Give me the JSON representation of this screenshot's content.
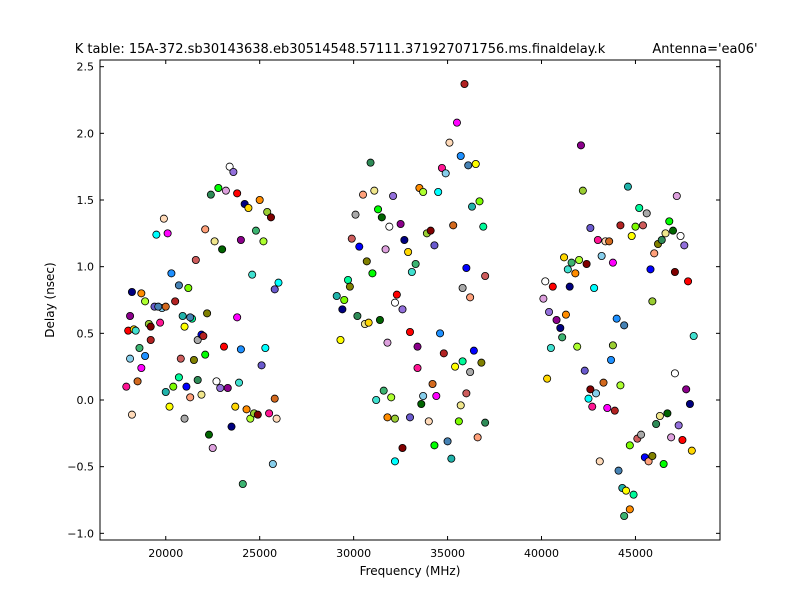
{
  "chart_data": {
    "type": "scatter",
    "title": "K table: 15A-372.sb30143638.eb30514548.57111.371927071756.ms.finaldelay.k",
    "antenna_label": "Antenna='ea06'",
    "xlabel": "Frequency (MHz)",
    "ylabel": "Delay (nsec)",
    "xlim": [
      16500,
      49500
    ],
    "ylim": [
      -1.05,
      2.55
    ],
    "xticks": [
      20000,
      25000,
      30000,
      35000,
      40000,
      45000
    ],
    "xtick_labels": [
      "20000",
      "25000",
      "30000",
      "35000",
      "40000",
      "45000"
    ],
    "yticks": [
      -1.0,
      -0.5,
      0.0,
      0.5,
      1.0,
      1.5,
      2.0,
      2.5
    ],
    "ytick_labels": [
      "−1.0",
      "−0.5",
      "0.0",
      "0.5",
      "1.0",
      "1.5",
      "2.0",
      "2.5"
    ],
    "grid": false,
    "marker": "circle",
    "marker_edge_color": "#000000",
    "palette": [
      "#ff0000",
      "#00ff00",
      "#0000ff",
      "#ffff00",
      "#ff00ff",
      "#00ffff",
      "#ff8c00",
      "#8b008b",
      "#006400",
      "#ffa07a",
      "#7cfc00",
      "#1e90ff",
      "#ff1493",
      "#adff2f",
      "#000080",
      "#dda0dd",
      "#808000",
      "#00fa9a",
      "#b22222",
      "#87ceeb",
      "#9acd32",
      "#ffd700",
      "#ffffff",
      "#2e8b57",
      "#cd5c5c",
      "#4682b4",
      "#ffdab9",
      "#800000",
      "#40e0d0",
      "#9370db",
      "#f0e68c",
      "#a9a9a9",
      "#20b2aa",
      "#d2691e",
      "#6a5acd",
      "#3cb371"
    ],
    "points": [
      [
        18000,
        0.52
      ],
      [
        18100,
        0.63
      ],
      [
        18200,
        0.81
      ],
      [
        18300,
        0.53
      ],
      [
        18400,
        0.52
      ],
      [
        18600,
        0.39
      ],
      [
        18700,
        0.8
      ],
      [
        18900,
        0.74
      ],
      [
        19100,
        0.57
      ],
      [
        19200,
        0.55
      ],
      [
        19400,
        0.7
      ],
      [
        19500,
        1.24
      ],
      [
        19700,
        0.58
      ],
      [
        19800,
        0.69
      ],
      [
        19900,
        1.36
      ],
      [
        20000,
        0.7
      ],
      [
        20100,
        1.25
      ],
      [
        20300,
        0.95
      ],
      [
        20500,
        0.74
      ],
      [
        20700,
        0.86
      ],
      [
        20900,
        0.63
      ],
      [
        21000,
        0.55
      ],
      [
        21200,
        0.84
      ],
      [
        21400,
        0.61
      ],
      [
        21600,
        1.05
      ],
      [
        21700,
        0.45
      ],
      [
        21900,
        0.49
      ],
      [
        22100,
        1.28
      ],
      [
        22200,
        0.65
      ],
      [
        22400,
        1.54
      ],
      [
        22600,
        1.19
      ],
      [
        22800,
        1.59
      ],
      [
        23000,
        1.13
      ],
      [
        23200,
        1.57
      ],
      [
        23400,
        1.75
      ],
      [
        23600,
        1.71
      ],
      [
        23800,
        1.55
      ],
      [
        24000,
        1.2
      ],
      [
        24200,
        1.47
      ],
      [
        24400,
        1.44
      ],
      [
        24600,
        0.94
      ],
      [
        24800,
        1.27
      ],
      [
        25000,
        1.5
      ],
      [
        25200,
        1.19
      ],
      [
        25400,
        1.41
      ],
      [
        25600,
        1.37
      ],
      [
        25800,
        0.83
      ],
      [
        26000,
        0.88
      ],
      [
        17900,
        0.1
      ],
      [
        18100,
        0.31
      ],
      [
        18200,
        -0.11
      ],
      [
        18500,
        0.14
      ],
      [
        18700,
        0.24
      ],
      [
        18900,
        0.33
      ],
      [
        19200,
        0.45
      ],
      [
        19600,
        0.7
      ],
      [
        20000,
        0.06
      ],
      [
        20200,
        -0.05
      ],
      [
        20400,
        0.1
      ],
      [
        20700,
        0.17
      ],
      [
        20800,
        0.31
      ],
      [
        21000,
        -0.14
      ],
      [
        21100,
        0.1
      ],
      [
        21300,
        0.02
      ],
      [
        21500,
        0.3
      ],
      [
        21700,
        0.15
      ],
      [
        21900,
        0.04
      ],
      [
        22100,
        0.34
      ],
      [
        22300,
        -0.26
      ],
      [
        22500,
        -0.36
      ],
      [
        22700,
        0.14
      ],
      [
        22900,
        0.09
      ],
      [
        23100,
        0.4
      ],
      [
        23300,
        0.09
      ],
      [
        23500,
        -0.2
      ],
      [
        23700,
        -0.05
      ],
      [
        23900,
        0.13
      ],
      [
        24100,
        -0.63
      ],
      [
        24300,
        -0.07
      ],
      [
        24500,
        -0.14
      ],
      [
        24700,
        -0.1
      ],
      [
        24900,
        -0.11
      ],
      [
        25100,
        0.26
      ],
      [
        25300,
        0.39
      ],
      [
        25500,
        -0.1
      ],
      [
        25700,
        -0.48
      ],
      [
        25900,
        -0.14
      ],
      [
        25800,
        0.01
      ],
      [
        23800,
        0.62
      ],
      [
        24000,
        0.38
      ],
      [
        22000,
        0.48
      ],
      [
        21300,
        0.62
      ],
      [
        29100,
        0.78
      ],
      [
        29300,
        0.45
      ],
      [
        29500,
        0.75
      ],
      [
        29700,
        0.9
      ],
      [
        29900,
        1.21
      ],
      [
        30100,
        1.39
      ],
      [
        30300,
        1.15
      ],
      [
        30500,
        1.54
      ],
      [
        30700,
        1.04
      ],
      [
        30900,
        1.78
      ],
      [
        31100,
        1.57
      ],
      [
        31300,
        1.43
      ],
      [
        31500,
        1.37
      ],
      [
        31700,
        1.13
      ],
      [
        31900,
        1.3
      ],
      [
        32100,
        1.53
      ],
      [
        32300,
        0.79
      ],
      [
        32500,
        1.32
      ],
      [
        32700,
        1.2
      ],
      [
        32900,
        1.11
      ],
      [
        33100,
        0.96
      ],
      [
        33300,
        1.02
      ],
      [
        33500,
        1.59
      ],
      [
        33700,
        1.56
      ],
      [
        33900,
        1.25
      ],
      [
        34100,
        1.27
      ],
      [
        34300,
        1.16
      ],
      [
        34500,
        1.56
      ],
      [
        34700,
        1.74
      ],
      [
        34900,
        1.7
      ],
      [
        35100,
        1.93
      ],
      [
        35300,
        1.31
      ],
      [
        35500,
        2.08
      ],
      [
        35700,
        1.83
      ],
      [
        35900,
        2.37
      ],
      [
        36100,
        1.76
      ],
      [
        36300,
        1.45
      ],
      [
        36500,
        1.77
      ],
      [
        36700,
        1.49
      ],
      [
        36900,
        1.3
      ],
      [
        37000,
        0.93
      ],
      [
        35800,
        0.84
      ],
      [
        36000,
        0.99
      ],
      [
        36200,
        0.77
      ],
      [
        29800,
        0.85
      ],
      [
        30200,
        0.63
      ],
      [
        30600,
        0.57
      ],
      [
        31000,
        0.95
      ],
      [
        31400,
        0.6
      ],
      [
        31800,
        0.43
      ],
      [
        32200,
        0.73
      ],
      [
        32600,
        0.68
      ],
      [
        33000,
        0.51
      ],
      [
        33400,
        0.4
      ],
      [
        29400,
        0.68
      ],
      [
        30800,
        0.58
      ],
      [
        31200,
        0.0
      ],
      [
        31600,
        0.07
      ],
      [
        31800,
        -0.13
      ],
      [
        32000,
        0.02
      ],
      [
        32200,
        -0.14
      ],
      [
        32600,
        -0.36
      ],
      [
        33000,
        -0.13
      ],
      [
        32200,
        -0.46
      ],
      [
        33400,
        0.24
      ],
      [
        33700,
        0.03
      ],
      [
        34000,
        -0.16
      ],
      [
        34200,
        0.12
      ],
      [
        34400,
        0.03
      ],
      [
        34600,
        0.5
      ],
      [
        34800,
        0.35
      ],
      [
        35000,
        -0.31
      ],
      [
        35200,
        -0.44
      ],
      [
        35400,
        0.25
      ],
      [
        35600,
        -0.16
      ],
      [
        35800,
        0.29
      ],
      [
        36000,
        0.05
      ],
      [
        36200,
        0.21
      ],
      [
        36400,
        0.37
      ],
      [
        36600,
        -0.28
      ],
      [
        36800,
        0.28
      ],
      [
        37000,
        -0.17
      ],
      [
        35700,
        -0.04
      ],
      [
        34300,
        -0.34
      ],
      [
        33600,
        -0.03
      ],
      [
        40100,
        0.76
      ],
      [
        40200,
        0.89
      ],
      [
        40400,
        0.66
      ],
      [
        40600,
        0.85
      ],
      [
        40800,
        0.6
      ],
      [
        41000,
        0.54
      ],
      [
        41200,
        1.07
      ],
      [
        41400,
        0.98
      ],
      [
        41600,
        1.03
      ],
      [
        41800,
        0.95
      ],
      [
        42000,
        1.05
      ],
      [
        42200,
        1.57
      ],
      [
        42400,
        1.02
      ],
      [
        42600,
        1.29
      ],
      [
        42800,
        0.84
      ],
      [
        43000,
        1.2
      ],
      [
        43200,
        1.08
      ],
      [
        43400,
        1.19
      ],
      [
        43600,
        1.19
      ],
      [
        43800,
        1.03
      ],
      [
        44000,
        0.61
      ],
      [
        44200,
        1.31
      ],
      [
        44400,
        0.56
      ],
      [
        44600,
        1.6
      ],
      [
        44800,
        1.23
      ],
      [
        45000,
        1.3
      ],
      [
        45200,
        1.44
      ],
      [
        45400,
        1.31
      ],
      [
        45600,
        1.4
      ],
      [
        45800,
        0.98
      ],
      [
        46000,
        1.1
      ],
      [
        46200,
        1.17
      ],
      [
        46400,
        1.2
      ],
      [
        46600,
        1.25
      ],
      [
        46800,
        1.34
      ],
      [
        47000,
        1.27
      ],
      [
        47200,
        1.53
      ],
      [
        47400,
        1.23
      ],
      [
        47600,
        1.16
      ],
      [
        47800,
        0.89
      ],
      [
        42100,
        1.91
      ],
      [
        41500,
        0.85
      ],
      [
        40300,
        0.16
      ],
      [
        40500,
        0.39
      ],
      [
        41100,
        0.47
      ],
      [
        41300,
        0.64
      ],
      [
        41900,
        0.4
      ],
      [
        45900,
        0.74
      ],
      [
        47100,
        0.96
      ],
      [
        42300,
        0.22
      ],
      [
        42500,
        0.01
      ],
      [
        42700,
        -0.05
      ],
      [
        42900,
        0.05
      ],
      [
        43100,
        -0.46
      ],
      [
        43300,
        0.13
      ],
      [
        43500,
        -0.06
      ],
      [
        43700,
        0.3
      ],
      [
        43900,
        -0.08
      ],
      [
        44100,
        -0.53
      ],
      [
        44300,
        -0.66
      ],
      [
        44500,
        -0.68
      ],
      [
        44700,
        -0.34
      ],
      [
        44900,
        -0.71
      ],
      [
        45100,
        -0.29
      ],
      [
        45300,
        -0.26
      ],
      [
        45500,
        -0.43
      ],
      [
        45700,
        -0.46
      ],
      [
        45900,
        -0.42
      ],
      [
        46100,
        -0.18
      ],
      [
        46300,
        -0.12
      ],
      [
        46500,
        -0.48
      ],
      [
        46700,
        -0.1
      ],
      [
        46900,
        -0.28
      ],
      [
        47100,
        0.2
      ],
      [
        47300,
        -0.19
      ],
      [
        47500,
        -0.3
      ],
      [
        47700,
        0.08
      ],
      [
        47900,
        -0.03
      ],
      [
        48000,
        -0.38
      ],
      [
        48100,
        0.48
      ],
      [
        44400,
        -0.87
      ],
      [
        44700,
        -0.82
      ],
      [
        44200,
        0.11
      ],
      [
        43800,
        0.41
      ],
      [
        42600,
        0.08
      ]
    ]
  }
}
